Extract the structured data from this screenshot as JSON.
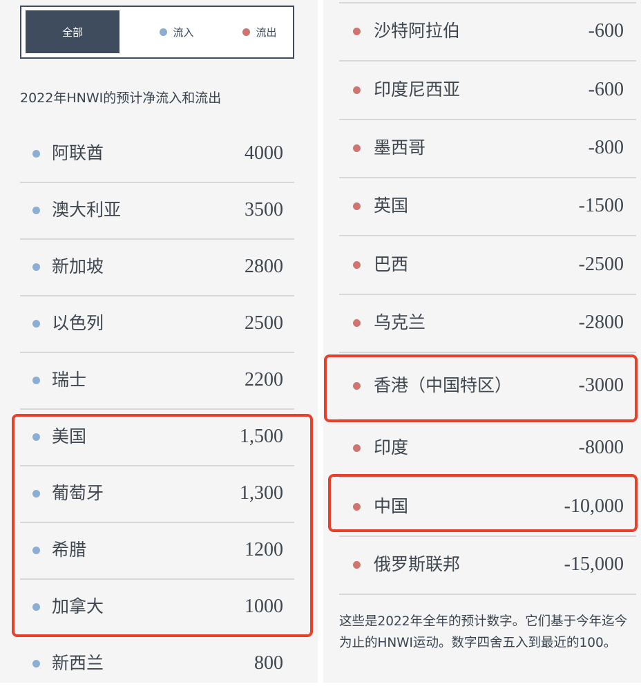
{
  "colors": {
    "inflow": "#8aaed6",
    "outflow": "#d07470",
    "active_tab": "#3e4c5e",
    "highlight": "#e8402a"
  },
  "tabs": [
    {
      "label": "全部",
      "active": true
    },
    {
      "label": "流入",
      "icon": "blue-dot"
    },
    {
      "label": "流出",
      "icon": "red-dot"
    }
  ],
  "title": "2022年HNWI的预计净流入和流出",
  "left_rows": [
    {
      "name": "阿联酋",
      "value": "4000",
      "type": "inflow"
    },
    {
      "name": "澳大利亚",
      "value": "3500",
      "type": "inflow"
    },
    {
      "name": "新加坡",
      "value": "2800",
      "type": "inflow"
    },
    {
      "name": "以色列",
      "value": "2500",
      "type": "inflow"
    },
    {
      "name": "瑞士",
      "value": "2200",
      "type": "inflow"
    },
    {
      "name": "美国",
      "value": "1,500",
      "type": "inflow",
      "highlighted": true
    },
    {
      "name": "葡萄牙",
      "value": "1,300",
      "type": "inflow",
      "highlighted": true
    },
    {
      "name": "希腊",
      "value": "1200",
      "type": "inflow",
      "highlighted": true
    },
    {
      "name": "加拿大",
      "value": "1000",
      "type": "inflow",
      "highlighted": true
    },
    {
      "name": "新西兰",
      "value": "800",
      "type": "inflow"
    }
  ],
  "right_rows": [
    {
      "name": "沙特阿拉伯",
      "value": "-600",
      "type": "outflow"
    },
    {
      "name": "印度尼西亚",
      "value": "-600",
      "type": "outflow"
    },
    {
      "name": "墨西哥",
      "value": "-800",
      "type": "outflow"
    },
    {
      "name": "英国",
      "value": "-1500",
      "type": "outflow"
    },
    {
      "name": "巴西",
      "value": "-2500",
      "type": "outflow"
    },
    {
      "name": "乌克兰",
      "value": "-2800",
      "type": "outflow"
    },
    {
      "name": "香港（中国特区）",
      "value": "-3000",
      "type": "outflow",
      "highlighted": true
    },
    {
      "name": "印度",
      "value": "-8000",
      "type": "outflow"
    },
    {
      "name": "中国",
      "value": "-10,000",
      "type": "outflow",
      "highlighted": true
    },
    {
      "name": "俄罗斯联邦",
      "value": "-15,000",
      "type": "outflow"
    }
  ],
  "footnote": "这些是2022年全年的预计数字。它们基于今年迄今为止的HNWI运动。数字四舍五入到最近的100。"
}
